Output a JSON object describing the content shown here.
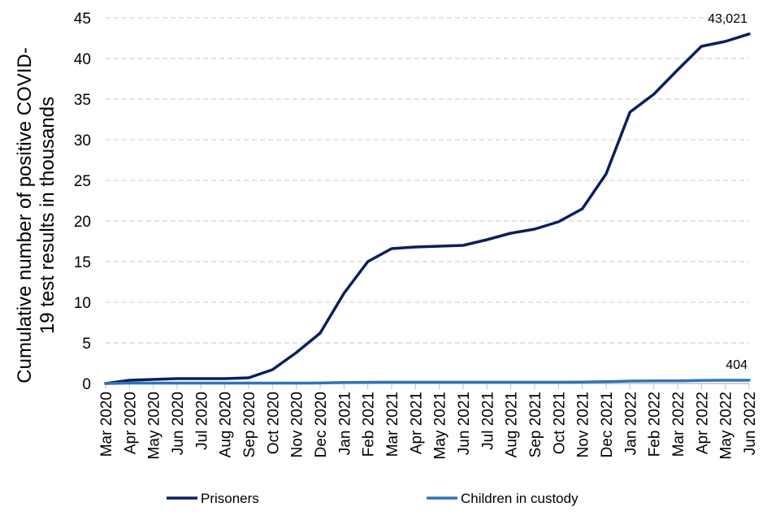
{
  "chart_data": {
    "type": "line",
    "ylabel_lines": [
      "Cumulative number of positive  COVID-",
      "19 test results in thousands"
    ],
    "xlabel": "",
    "ylim": [
      0,
      45
    ],
    "yticks": [
      0,
      5,
      10,
      15,
      20,
      25,
      30,
      35,
      40,
      45
    ],
    "grid": "horizontal-dashed",
    "legend_position": "bottom",
    "categories": [
      "Mar 2020",
      "Apr 2020",
      "May 2020",
      "Jun 2020",
      "Jul 2020",
      "Aug 2020",
      "Sep 2020",
      "Oct 2020",
      "Nov 2020",
      "Dec 2020",
      "Jan 2021",
      "Feb 2021",
      "Mar 2021",
      "Apr 2021",
      "May 2021",
      "Jun 2021",
      "Jul 2021",
      "Aug 2021",
      "Sep 2021",
      "Oct 2021",
      "Nov 2021",
      "Dec 2021",
      "Jan 2022",
      "Feb 2022",
      "Mar 2022",
      "Apr 2022",
      "May 2022",
      "Jun 2022"
    ],
    "series": [
      {
        "name": "Prisoners",
        "color": "#0b1f5c",
        "values": [
          0.0,
          0.4,
          0.5,
          0.6,
          0.6,
          0.6,
          0.7,
          1.7,
          3.8,
          6.2,
          11.1,
          15.0,
          16.6,
          16.8,
          16.9,
          17.0,
          17.7,
          18.5,
          19.0,
          19.9,
          21.5,
          25.8,
          33.4,
          35.6,
          38.6,
          41.5,
          42.1,
          43.021
        ],
        "end_label": "43,021"
      },
      {
        "name": "Children in custody",
        "color": "#2e75b6",
        "values": [
          0.0,
          0.05,
          0.05,
          0.05,
          0.05,
          0.05,
          0.05,
          0.05,
          0.05,
          0.06,
          0.12,
          0.15,
          0.16,
          0.16,
          0.16,
          0.16,
          0.16,
          0.16,
          0.16,
          0.16,
          0.17,
          0.22,
          0.3,
          0.32,
          0.33,
          0.38,
          0.4,
          0.404
        ],
        "end_label": "404"
      }
    ]
  }
}
